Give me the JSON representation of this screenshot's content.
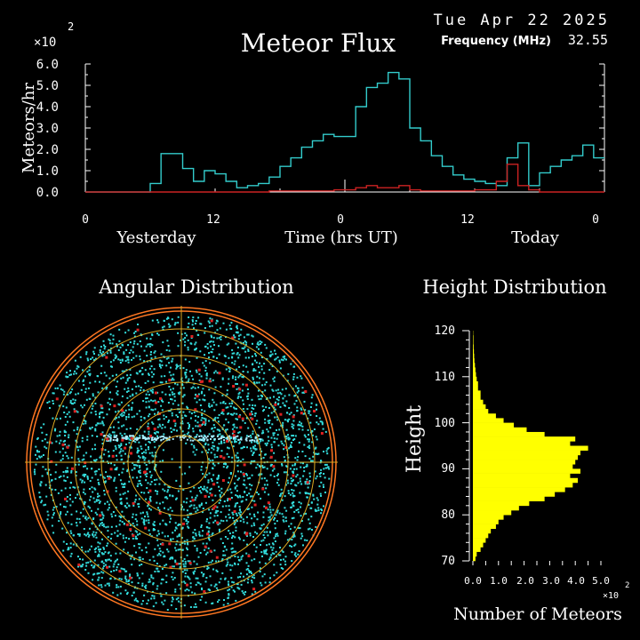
{
  "header": {
    "date": "Tue Apr 22 2025",
    "title": "Meteor Flux",
    "frequency_label": "Frequency (MHz)",
    "frequency_value": "32.55",
    "multiplier": "×10",
    "multiplier_exp": "2"
  },
  "flux_chart": {
    "ylabel": "Meteors/hr",
    "xlabel": "Time (hrs UT)",
    "day_labels": [
      "Yesterday",
      "Today"
    ],
    "x_tick_labels": [
      "0",
      "12",
      "0",
      "12",
      "0"
    ],
    "y_tick_labels": [
      "0.0",
      "1.0",
      "2.0",
      "3.0",
      "4.0",
      "5.0",
      "6.0"
    ]
  },
  "angular": {
    "title": "Angular Distribution"
  },
  "height_hist": {
    "title": "Height Distribution",
    "ylabel": "Height",
    "xlabel": "Number of Meteors",
    "y_tick_labels": [
      "70",
      "80",
      "90",
      "100",
      "110",
      "120"
    ],
    "x_tick_labels": [
      "0.0",
      "1.0",
      "2.0",
      "3.0",
      "4.0",
      "5.0"
    ],
    "x_multiplier": "×10",
    "x_multiplier_exp": "2"
  },
  "chart_data": [
    {
      "type": "line",
      "title": "Meteor Flux",
      "xlabel": "Time (hrs UT)",
      "ylabel": "Meteors/hr",
      "unit_multiplier": 100,
      "xlim": [
        0,
        48
      ],
      "ylim": [
        0,
        6
      ],
      "grid": false,
      "step": true,
      "x": [
        0,
        1,
        2,
        3,
        4,
        5,
        6,
        7,
        8,
        9,
        10,
        11,
        12,
        13,
        14,
        15,
        16,
        17,
        18,
        19,
        20,
        21,
        22,
        23,
        24,
        25,
        26,
        27,
        28,
        29,
        30,
        31,
        32,
        33,
        34,
        35,
        36,
        37,
        38,
        39,
        40,
        41,
        42,
        43,
        44,
        45,
        46,
        47
      ],
      "series": [
        {
          "color": "#33cccc",
          "values": [
            0,
            0,
            0,
            0,
            0,
            0,
            0.4,
            1.8,
            1.8,
            1.1,
            0.5,
            1.0,
            0.85,
            0.5,
            0.2,
            0.3,
            0.4,
            0.7,
            1.2,
            1.6,
            2.1,
            2.4,
            2.7,
            2.6,
            2.6,
            4.0,
            4.9,
            5.1,
            5.6,
            5.3,
            3.0,
            2.4,
            1.7,
            1.2,
            0.8,
            0.6,
            0.5,
            0.4,
            0.3,
            1.6,
            2.3,
            0.3,
            0.9,
            1.2,
            1.5,
            1.7,
            2.2,
            1.6
          ]
        },
        {
          "color": "#cc2222",
          "values": [
            0,
            0,
            0,
            0,
            0,
            0,
            0,
            0,
            0,
            0,
            0,
            0,
            0,
            0,
            0,
            0,
            0,
            0.05,
            0.05,
            0.05,
            0.05,
            0.05,
            0.05,
            0.1,
            0.1,
            0.2,
            0.3,
            0.2,
            0.2,
            0.3,
            0.1,
            0.05,
            0.05,
            0.05,
            0.05,
            0.05,
            0.1,
            0.1,
            0.5,
            1.3,
            0.3,
            0.1,
            0,
            0,
            0,
            0,
            0,
            0
          ]
        }
      ]
    },
    {
      "type": "scatter",
      "title": "Angular Distribution",
      "projection": "polar",
      "rings": 5,
      "series": [
        {
          "name": "cyan points",
          "color": "#33dddd",
          "count": 3200
        },
        {
          "name": "red points",
          "color": "#dd2222",
          "count": 120
        }
      ]
    },
    {
      "type": "bar",
      "orientation": "horizontal",
      "title": "Height Distribution",
      "ylabel": "Height",
      "xlabel": "Number of Meteors",
      "unit_multiplier": 100,
      "ylim": [
        70,
        120
      ],
      "xlim": [
        0,
        5
      ],
      "bar_color": "#ffff00",
      "categories": [
        70,
        71,
        72,
        73,
        74,
        75,
        76,
        77,
        78,
        79,
        80,
        81,
        82,
        83,
        84,
        85,
        86,
        87,
        88,
        89,
        90,
        91,
        92,
        93,
        94,
        95,
        96,
        97,
        98,
        99,
        100,
        101,
        102,
        103,
        104,
        105,
        106,
        107,
        108,
        109,
        110,
        111,
        112,
        113,
        114,
        115,
        116,
        117,
        118,
        119
      ],
      "values": [
        0.1,
        0.15,
        0.3,
        0.4,
        0.5,
        0.6,
        0.7,
        0.9,
        1.0,
        1.2,
        1.5,
        1.8,
        2.2,
        2.8,
        3.2,
        3.6,
        3.9,
        4.1,
        3.8,
        4.2,
        3.9,
        4.0,
        4.1,
        4.2,
        4.5,
        3.8,
        4.0,
        2.8,
        2.1,
        1.6,
        1.2,
        0.9,
        0.6,
        0.5,
        0.4,
        0.3,
        0.3,
        0.2,
        0.2,
        0.15,
        0.12,
        0.1,
        0.08,
        0.06,
        0.05,
        0.04,
        0.03,
        0.02,
        0.02,
        0.01
      ]
    }
  ]
}
